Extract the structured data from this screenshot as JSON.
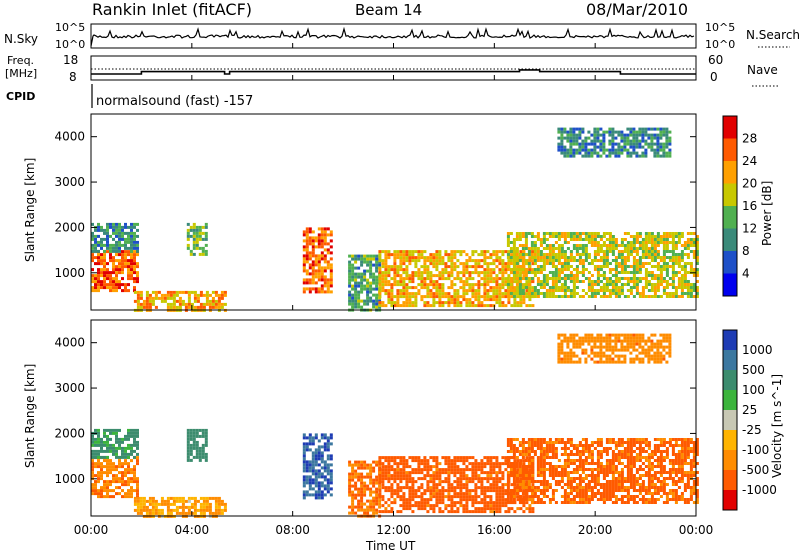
{
  "header": {
    "station": "Rankin Inlet (fitACF)",
    "beam": "Beam 14",
    "date": "08/Mar/2010"
  },
  "nsky_panel": {
    "label": "N.Sky",
    "tick_top": "10^5",
    "tick_bottom": "10^0",
    "right_label": "N.Search",
    "right_tick_top": "10^5",
    "right_tick_bottom": "10^0"
  },
  "freq_panel": {
    "label_line1": "Freq.",
    "label_line2": "[MHz]",
    "left_ticks": [
      "18",
      "8"
    ],
    "right_ticks": [
      "60",
      "0"
    ],
    "right_label": "Nave",
    "cpid_label": "CPID"
  },
  "cpid_text": "normalsound (fast) -157",
  "x_axis": {
    "label": "Time UT",
    "ticks": [
      "00:00",
      "04:00",
      "08:00",
      "12:00",
      "16:00",
      "20:00",
      "00:00"
    ]
  },
  "power_panel": {
    "y_label": "Slant Range [km]",
    "y_ticks": [
      "4000",
      "3000",
      "2000",
      "1000"
    ],
    "colorbar_label": "Power [dB]",
    "colorbar_ticks": [
      "28",
      "24",
      "20",
      "16",
      "12",
      "8",
      "4"
    ],
    "colors": [
      "#0000ee",
      "#1e50c8",
      "#3a8a7a",
      "#50b050",
      "#c8c800",
      "#ffa000",
      "#ff5a00",
      "#e10000"
    ]
  },
  "velocity_panel": {
    "y_label": "Slant Range [km]",
    "y_ticks": [
      "4000",
      "3000",
      "2000",
      "1000"
    ],
    "colorbar_label": "Velocity [m s^-1]",
    "colorbar_ticks": [
      "1000",
      "500",
      "100",
      "25",
      "-25",
      "-100",
      "-500",
      "-1000"
    ],
    "colors": [
      "#1e3cb4",
      "#3c78a0",
      "#3c8c6e",
      "#3cb43c",
      "#c8c8b4",
      "#ffb400",
      "#ff8c00",
      "#ff5a00",
      "#e10000"
    ]
  },
  "chart_data": {
    "type": "heatmap",
    "x_range_hours": [
      0,
      24
    ],
    "y_range_km": [
      180,
      4500
    ],
    "frequency_mhz_segments": [
      {
        "start_h": 0,
        "end_h": 2.0,
        "value": 10.5
      },
      {
        "start_h": 2.0,
        "end_h": 3.3,
        "value": 11.5
      },
      {
        "start_h": 3.3,
        "end_h": 5.3,
        "value": 11.5
      },
      {
        "start_h": 5.3,
        "end_h": 5.5,
        "value": 10.5
      },
      {
        "start_h": 5.5,
        "end_h": 17.0,
        "value": 11.5
      },
      {
        "start_h": 17.0,
        "end_h": 17.8,
        "value": 12.2
      },
      {
        "start_h": 17.8,
        "end_h": 21.0,
        "value": 11.5
      },
      {
        "start_h": 21.0,
        "end_h": 24.0,
        "value": 10.5
      }
    ],
    "scatter_regions": [
      {
        "t0": 0.0,
        "t1": 1.9,
        "r0": 600,
        "r1": 1500,
        "power_db": 26,
        "velocity": -250
      },
      {
        "t0": 0.0,
        "t1": 1.9,
        "r0": 1500,
        "r1": 2100,
        "power_db": 10,
        "velocity": 100
      },
      {
        "t0": 1.7,
        "t1": 5.3,
        "r0": 180,
        "r1": 600,
        "power_db": 22,
        "velocity": -60
      },
      {
        "t0": 3.8,
        "t1": 4.6,
        "r0": 1400,
        "r1": 2100,
        "power_db": 14,
        "velocity": 150
      },
      {
        "t0": 8.4,
        "t1": 9.5,
        "r0": 600,
        "r1": 2000,
        "power_db": 25,
        "velocity": 700
      },
      {
        "t0": 10.2,
        "t1": 11.4,
        "r0": 180,
        "r1": 1400,
        "power_db": 12,
        "velocity": -300
      },
      {
        "t0": 11.4,
        "t1": 17.5,
        "r0": 300,
        "r1": 1500,
        "power_db": 21,
        "velocity": -500
      },
      {
        "t0": 16.5,
        "t1": 24.0,
        "r0": 500,
        "r1": 1900,
        "power_db": 18,
        "velocity": -400
      },
      {
        "t0": 18.5,
        "t1": 23.0,
        "r0": 3600,
        "r1": 4200,
        "power_db": 10,
        "velocity": -200
      }
    ]
  }
}
